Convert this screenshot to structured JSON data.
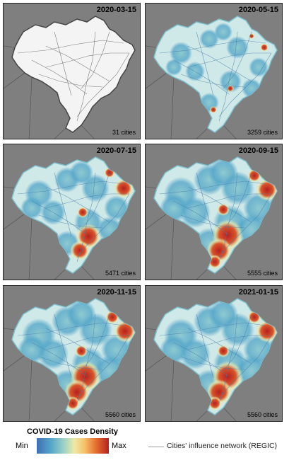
{
  "panels": [
    {
      "date": "2020-03-15",
      "cities": "31 cities",
      "intensity": 0
    },
    {
      "date": "2020-05-15",
      "cities": "3259 cities",
      "intensity": 1
    },
    {
      "date": "2020-07-15",
      "cities": "5471 cities",
      "intensity": 2
    },
    {
      "date": "2020-09-15",
      "cities": "5555 cities",
      "intensity": 3
    },
    {
      "date": "2020-11-15",
      "cities": "5560 cities",
      "intensity": 3
    },
    {
      "date": "2021-01-15",
      "cities": "5560 cities",
      "intensity": 3
    }
  ],
  "legend": {
    "title": "COVID-19 Cases Density",
    "min_label": "Min",
    "max_label": "Max",
    "network_label": "Cities' influence network (REGIC)"
  },
  "colors": {
    "land_outside": "#7f7f7f",
    "country_borders": "#5a5a5a",
    "brazil_empty": "#f4f4f4",
    "low": "#56a7c9",
    "mid": "#eaeaa8",
    "high": "#b52020"
  }
}
